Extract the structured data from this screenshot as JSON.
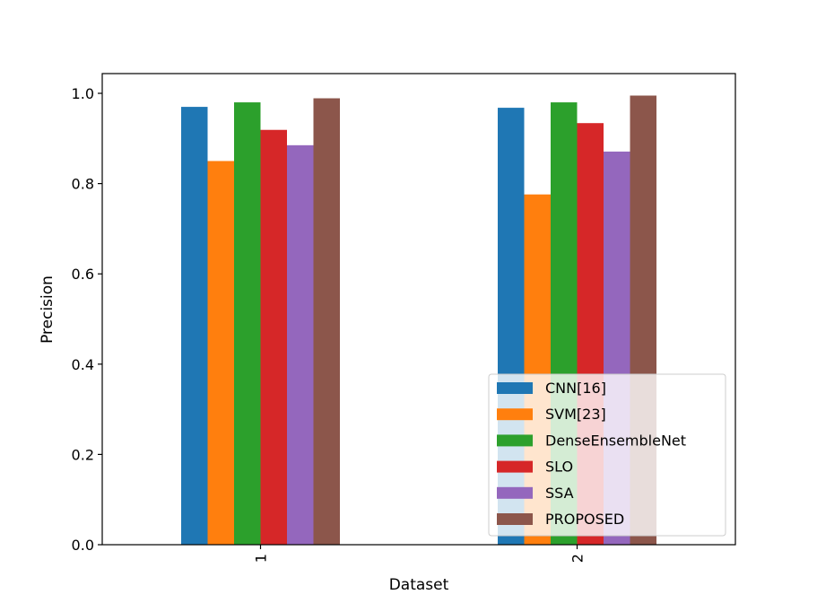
{
  "chart_data": {
    "type": "bar",
    "title": "",
    "xlabel": "Dataset",
    "ylabel": "Precision",
    "categories": [
      "1",
      "2"
    ],
    "ylim": [
      0,
      1.0
    ],
    "yticks": [
      "0.0",
      "0.2",
      "0.4",
      "0.6",
      "0.8",
      "1.0"
    ],
    "grid": false,
    "legend_position": "lower-right",
    "series": [
      {
        "name": "CNN[16]",
        "color": "#1f77b4",
        "values": [
          0.97,
          0.968
        ]
      },
      {
        "name": "SVM[23]",
        "color": "#ff7f0e",
        "values": [
          0.85,
          0.776
        ]
      },
      {
        "name": "DenseEnsembleNet",
        "color": "#2ca02c",
        "values": [
          0.98,
          0.98
        ]
      },
      {
        "name": "SLO",
        "color": "#d62728",
        "values": [
          0.919,
          0.934
        ]
      },
      {
        "name": "SSA",
        "color": "#9467bd",
        "values": [
          0.885,
          0.871
        ]
      },
      {
        "name": "PROPOSED",
        "color": "#8c564b",
        "values": [
          0.989,
          0.995
        ]
      }
    ]
  }
}
